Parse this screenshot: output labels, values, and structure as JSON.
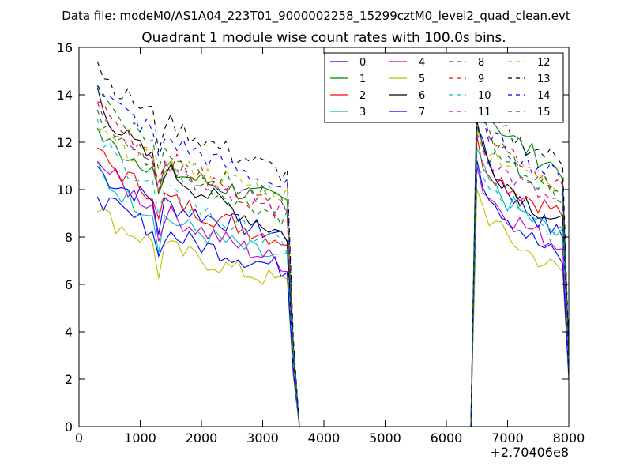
{
  "chart_data": {
    "type": "line",
    "suptitle": "Data file: modeM0/AS1A04_223T01_9000002258_15299cztM0_level2_quad_clean.evt",
    "title": "Quadrant 1 module wise count rates with 100.0s bins.",
    "xlabel": "",
    "ylabel": "",
    "x_offset_label": "+2.70406e8",
    "xlim": [
      0,
      8000
    ],
    "ylim": [
      0,
      16
    ],
    "xticks": [
      "0",
      "1000",
      "2000",
      "3000",
      "4000",
      "5000",
      "6000",
      "7000",
      "8000"
    ],
    "yticks": [
      "0",
      "2",
      "4",
      "6",
      "8",
      "10",
      "12",
      "14",
      "16"
    ],
    "legend_position": "top-right",
    "x": [
      300,
      400,
      500,
      600,
      700,
      800,
      900,
      1000,
      1100,
      1200,
      1300,
      1400,
      1500,
      1600,
      1700,
      1800,
      1900,
      2000,
      2100,
      2200,
      2300,
      2400,
      2500,
      2600,
      2700,
      2800,
      2900,
      3000,
      3100,
      3200,
      3300,
      3400,
      3500,
      3600,
      3700,
      3800,
      3900,
      4000,
      4100,
      4200,
      4300,
      4400,
      4500,
      4600,
      4700,
      4800,
      4900,
      5000,
      5100,
      5200,
      5300,
      5400,
      5500,
      5600,
      5700,
      5800,
      5900,
      6000,
      6100,
      6200,
      6300,
      6400,
      6500,
      6600,
      6700,
      6800,
      6900,
      7000,
      7100,
      7200,
      7300,
      7400,
      7500,
      7600,
      7700,
      7800,
      7900,
      8000
    ],
    "series": [
      {
        "name": "0",
        "color": "#0000ff",
        "dash": "solid",
        "base_start": 11.0,
        "base_end": 8.0,
        "peak": 13.0,
        "post_base": 8.0
      },
      {
        "name": "1",
        "color": "#008000",
        "dash": "solid",
        "base_start": 12.5,
        "base_end": 9.4,
        "peak": 14.6,
        "post_base": 10.8
      },
      {
        "name": "2",
        "color": "#ff0000",
        "dash": "solid",
        "base_start": 11.8,
        "base_end": 7.8,
        "peak": 12.0,
        "post_base": 9.0
      },
      {
        "name": "3",
        "color": "#00bfbf",
        "dash": "solid",
        "base_start": 11.0,
        "base_end": 6.9,
        "peak": 11.7,
        "post_base": 8.0
      },
      {
        "name": "4",
        "color": "#bf00bf",
        "dash": "solid",
        "base_start": 11.6,
        "base_end": 6.8,
        "peak": 11.0,
        "post_base": 7.6
      },
      {
        "name": "5",
        "color": "#bfbf00",
        "dash": "solid",
        "base_start": 9.4,
        "base_end": 6.0,
        "peak": 10.2,
        "post_base": 6.5
      },
      {
        "name": "6",
        "color": "#000000",
        "dash": "solid",
        "base_start": 14.2,
        "base_end": 8.0,
        "peak": 12.8,
        "post_base": 8.5
      },
      {
        "name": "7",
        "color": "#0000ff",
        "dash": "solid",
        "base_start": 10.0,
        "base_end": 6.6,
        "peak": 11.6,
        "post_base": 7.0
      },
      {
        "name": "8",
        "color": "#008000",
        "dash": "dashed",
        "base_start": 13.4,
        "base_end": 8.8,
        "peak": 14.0,
        "post_base": 9.5
      },
      {
        "name": "9",
        "color": "#ff0000",
        "dash": "dashed",
        "base_start": 14.0,
        "base_end": 9.0,
        "peak": 14.1,
        "post_base": 10.2
      },
      {
        "name": "10",
        "color": "#00bfbf",
        "dash": "dashed",
        "base_start": 12.6,
        "base_end": 7.5,
        "peak": 11.2,
        "post_base": 8.0
      },
      {
        "name": "11",
        "color": "#bf00bf",
        "dash": "dashed",
        "base_start": 13.7,
        "base_end": 9.0,
        "peak": 12.6,
        "post_base": 9.3
      },
      {
        "name": "12",
        "color": "#bfbf00",
        "dash": "dashed",
        "base_start": 12.6,
        "base_end": 9.8,
        "peak": 12.6,
        "post_base": 10.2
      },
      {
        "name": "13",
        "color": "#000000",
        "dash": "dashed",
        "base_start": 15.5,
        "base_end": 10.6,
        "peak": 14.0,
        "post_base": 11.2
      },
      {
        "name": "14",
        "color": "#0000ff",
        "dash": "dashed",
        "base_start": 14.7,
        "base_end": 10.0,
        "peak": 13.5,
        "post_base": 10.5
      },
      {
        "name": "15",
        "color": "#008000",
        "dash": "dashed",
        "base_start": 14.6,
        "base_end": 9.2,
        "peak": 12.4,
        "post_base": 10.0
      }
    ]
  }
}
